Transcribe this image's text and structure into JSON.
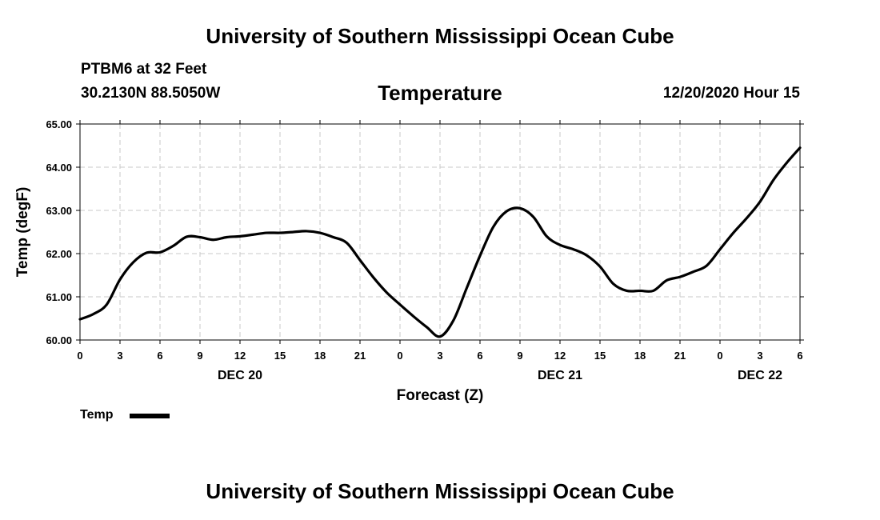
{
  "header": {
    "title_top": "University of Southern Mississippi Ocean Cube",
    "station": "PTBM6 at 32 Feet",
    "coords": "30.2130N 88.5050W",
    "variable_title": "Temperature",
    "date_hour": "12/20/2020 Hour 15",
    "title_bottom": "University of Southern Mississippi Ocean Cube"
  },
  "legend": {
    "label": "Temp",
    "color": "#000000"
  },
  "chart_data": {
    "type": "line",
    "title": "Temperature",
    "xlabel": "Forecast (Z)",
    "ylabel": "Temp (degF)",
    "ylim": [
      60.0,
      65.0
    ],
    "xlim": [
      0,
      54
    ],
    "grid": true,
    "legend_position": "bottom-left",
    "y_ticks": [
      "60.00",
      "61.00",
      "62.00",
      "63.00",
      "64.00",
      "65.00"
    ],
    "x_ticks": [
      {
        "x": 0,
        "label": "0"
      },
      {
        "x": 3,
        "label": "3"
      },
      {
        "x": 6,
        "label": "6"
      },
      {
        "x": 9,
        "label": "9"
      },
      {
        "x": 12,
        "label": "12"
      },
      {
        "x": 15,
        "label": "15"
      },
      {
        "x": 18,
        "label": "18"
      },
      {
        "x": 21,
        "label": "21"
      },
      {
        "x": 24,
        "label": "0"
      },
      {
        "x": 27,
        "label": "3"
      },
      {
        "x": 30,
        "label": "6"
      },
      {
        "x": 33,
        "label": "9"
      },
      {
        "x": 36,
        "label": "12"
      },
      {
        "x": 39,
        "label": "15"
      },
      {
        "x": 42,
        "label": "18"
      },
      {
        "x": 45,
        "label": "21"
      },
      {
        "x": 48,
        "label": "0"
      },
      {
        "x": 51,
        "label": "3"
      },
      {
        "x": 54,
        "label": "6"
      }
    ],
    "date_labels": [
      {
        "x": 12,
        "label": "DEC 20"
      },
      {
        "x": 36,
        "label": "DEC 21"
      },
      {
        "x": 51,
        "label": "DEC 22"
      }
    ],
    "series": [
      {
        "name": "Temp",
        "x": [
          0,
          1,
          2,
          3,
          4,
          5,
          6,
          7,
          8,
          9,
          10,
          11,
          12,
          13,
          14,
          15,
          16,
          17,
          18,
          19,
          20,
          21,
          22,
          23,
          24,
          25,
          26,
          27,
          28,
          29,
          30,
          31,
          32,
          33,
          34,
          35,
          36,
          37,
          38,
          39,
          40,
          41,
          42,
          43,
          44,
          45,
          46,
          47,
          48,
          49,
          50,
          51,
          52,
          53,
          54
        ],
        "values": [
          60.48,
          60.6,
          60.82,
          61.4,
          61.8,
          62.02,
          62.03,
          62.18,
          62.39,
          62.38,
          62.32,
          62.38,
          62.4,
          62.44,
          62.48,
          62.48,
          62.5,
          62.52,
          62.48,
          62.38,
          62.25,
          61.85,
          61.45,
          61.1,
          60.82,
          60.55,
          60.3,
          60.08,
          60.45,
          61.2,
          61.95,
          62.62,
          62.98,
          63.05,
          62.85,
          62.4,
          62.2,
          62.1,
          61.96,
          61.7,
          61.3,
          61.14,
          61.14,
          61.14,
          61.38,
          61.46,
          61.58,
          61.72,
          62.1,
          62.48,
          62.82,
          63.2,
          63.7,
          64.1,
          64.45
        ]
      }
    ]
  }
}
